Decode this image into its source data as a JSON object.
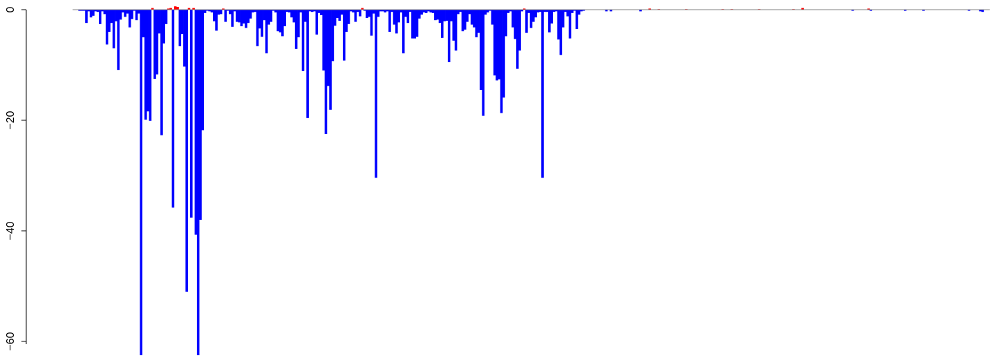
{
  "chart_data": {
    "type": "bar",
    "title": "",
    "xlabel": "",
    "ylabel": "",
    "ylim": [
      -62.5,
      0
    ],
    "y_ticks": [
      0,
      -20,
      -40,
      -60
    ],
    "y_tick_labels": [
      "0",
      "−20",
      "−40",
      "−60"
    ],
    "grid": false,
    "legend": "none",
    "colors": {
      "negative": "#0000ff",
      "positive": "#ff0000",
      "baseline": "#808080",
      "axis": "#000000"
    },
    "n_bars": 400,
    "values": [
      0,
      -0.2,
      -0.2,
      -0.2,
      -2.4,
      -0.3,
      -1.4,
      -1.1,
      -0.3,
      -0.4,
      -2.6,
      -0.3,
      -0.8,
      -6.3,
      -4,
      -2.4,
      -7,
      -2.1,
      -10.9,
      -1.8,
      -0.5,
      -1.3,
      -0.7,
      -3.2,
      -1.7,
      -0.2,
      -1.9,
      -0.7,
      -62.5,
      -5,
      -19.9,
      -18.4,
      -20.1,
      0.3,
      -12.5,
      -11.7,
      -4.3,
      -22.7,
      -6.1,
      -2.6,
      0.2,
      0.3,
      -35.8,
      0.6,
      0.5,
      -6.6,
      -4.4,
      -10.3,
      -51,
      0.3,
      -37.6,
      0.3,
      -40.7,
      -62.5,
      -38,
      -21.8,
      -0.6,
      -0.2,
      -0.3,
      -0.5,
      -2.1,
      -3.8,
      -0.9,
      -0.8,
      0.2,
      -2.2,
      -0.2,
      -0.8,
      -3.1,
      -0.3,
      -2.2,
      -2.3,
      -3,
      -2.5,
      -3.3,
      -2.4,
      -1.6,
      -0.5,
      -0.4,
      -6.6,
      -3.4,
      -4.9,
      -1.9,
      -7.9,
      -2.7,
      -2.2,
      -0.2,
      -0.5,
      -3.9,
      -4.1,
      -4.8,
      -3,
      -0.4,
      -0.5,
      -1.4,
      -2.3,
      -7.1,
      -5,
      -0.5,
      -11.1,
      -2.2,
      -19.6,
      -0.3,
      -0.4,
      -0.3,
      -4.5,
      -0.6,
      -1,
      -11,
      -22.5,
      -13.8,
      -18.1,
      -9.3,
      -2.9,
      -1.5,
      -2,
      -0.9,
      -9.2,
      -4,
      -2.6,
      -0.3,
      -0.5,
      -2.2,
      -0.4,
      -1.2,
      0.3,
      -0.2,
      -1.5,
      -1.3,
      -4.7,
      -0.7,
      -30.4,
      -1.3,
      -0.3,
      -0.3,
      -0.5,
      -0.3,
      -4,
      -0.4,
      -2.7,
      -4.3,
      -2.3,
      -0.5,
      -7.9,
      -1.3,
      -2.4,
      -0.4,
      -5.2,
      -5.2,
      -4.9,
      -1.6,
      -0.9,
      -0.5,
      -0.6,
      -0.3,
      -0.5,
      -0.6,
      -1.9,
      -1.8,
      -2.4,
      -5.1,
      -2.1,
      -2,
      -9.5,
      -2.1,
      -5.6,
      -7.4,
      -0.8,
      -0.4,
      -3.9,
      -3.6,
      -2.2,
      -0.8,
      -2.7,
      -3.2,
      -5,
      -4.2,
      -14.5,
      -19.2,
      -0.9,
      -0.5,
      -0.2,
      -2.7,
      -11.9,
      -12.8,
      -12.6,
      -18.7,
      -15.9,
      -4.8,
      -0.6,
      -0.3,
      -3.2,
      -5.3,
      -10.7,
      -7.4,
      -0.3,
      0.2,
      -4.2,
      -0.6,
      -3.3,
      -2.2,
      -1.4,
      -0.5,
      -0.4,
      -30.4,
      -0.4,
      -0.4,
      -4.1,
      -2.5,
      -0.4,
      -0.3,
      -5.4,
      -8.2,
      -3.2,
      -0.4,
      -1.2,
      -5.2,
      -0.6,
      -0.2,
      -3.5,
      -0.9,
      -0.3,
      -0.2,
      0,
      0,
      0,
      0,
      0,
      0,
      0,
      0,
      0,
      -0.3,
      0,
      -0.3,
      0,
      0,
      0,
      0,
      0,
      0,
      0,
      0,
      0,
      0,
      0,
      0,
      -0.3,
      0,
      0,
      0,
      0.2,
      0,
      0,
      0,
      0.1,
      0,
      0,
      0,
      0,
      0,
      0,
      0,
      0,
      0,
      0,
      0,
      0.1,
      0,
      0,
      0,
      0,
      0,
      0,
      0,
      0,
      0,
      0,
      0,
      0,
      0,
      0,
      0,
      0.1,
      0,
      0,
      0,
      0.1,
      0,
      0,
      0,
      0,
      0,
      0,
      0,
      0,
      0,
      0,
      0,
      0.1,
      0,
      0,
      0,
      0,
      0,
      0,
      0,
      0,
      0,
      0,
      0,
      0,
      0,
      0,
      0.1,
      0,
      0,
      0,
      0.3,
      0,
      0,
      0,
      0,
      0,
      0,
      0,
      0,
      0,
      0,
      0,
      0,
      0,
      0,
      0,
      0,
      0,
      0,
      0,
      0,
      0,
      -0.2,
      0,
      0,
      0,
      0,
      0,
      0,
      0.2,
      -0.2,
      0,
      0,
      0,
      0,
      0,
      0,
      0,
      0,
      0,
      0,
      0,
      0,
      0,
      0,
      -0.2,
      0,
      0,
      0,
      0,
      0,
      0,
      0,
      -0.2,
      0,
      0,
      0,
      0,
      0,
      0,
      0,
      0,
      0,
      0,
      0,
      0,
      0,
      0,
      0,
      0,
      0,
      0,
      0,
      -0.2,
      0,
      0,
      0,
      0,
      -0.3,
      -0.4,
      0,
      0
    ]
  }
}
